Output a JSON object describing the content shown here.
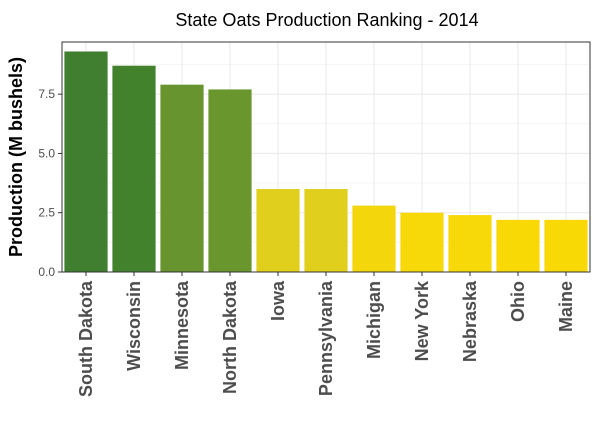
{
  "chart_data": {
    "type": "bar",
    "title": "State Oats Production Ranking - 2014",
    "xlabel": "",
    "ylabel": "Production (M bushels)",
    "ylim": [
      0,
      9.7
    ],
    "yticks": [
      0.0,
      2.5,
      5.0,
      7.5
    ],
    "ytick_labels": [
      "0.0",
      "2.5",
      "5.0",
      "7.5"
    ],
    "grid": true,
    "categories": [
      "South Dakota",
      "Wisconsin",
      "Minnesota",
      "North Dakota",
      "Iowa",
      "Pennsylvania",
      "Michigan",
      "New York",
      "Nebraska",
      "Ohio",
      "Maine"
    ],
    "values": [
      9.3,
      8.7,
      7.9,
      7.7,
      3.5,
      3.5,
      2.8,
      2.5,
      2.4,
      2.2,
      2.2
    ],
    "bar_colors": [
      "#3f7f2f",
      "#43822d",
      "#67942f",
      "#6a962e",
      "#e0cf1c",
      "#e0cf1c",
      "#f4d60c",
      "#f7d808",
      "#f7d808",
      "#f9d905",
      "#f9d905"
    ]
  }
}
